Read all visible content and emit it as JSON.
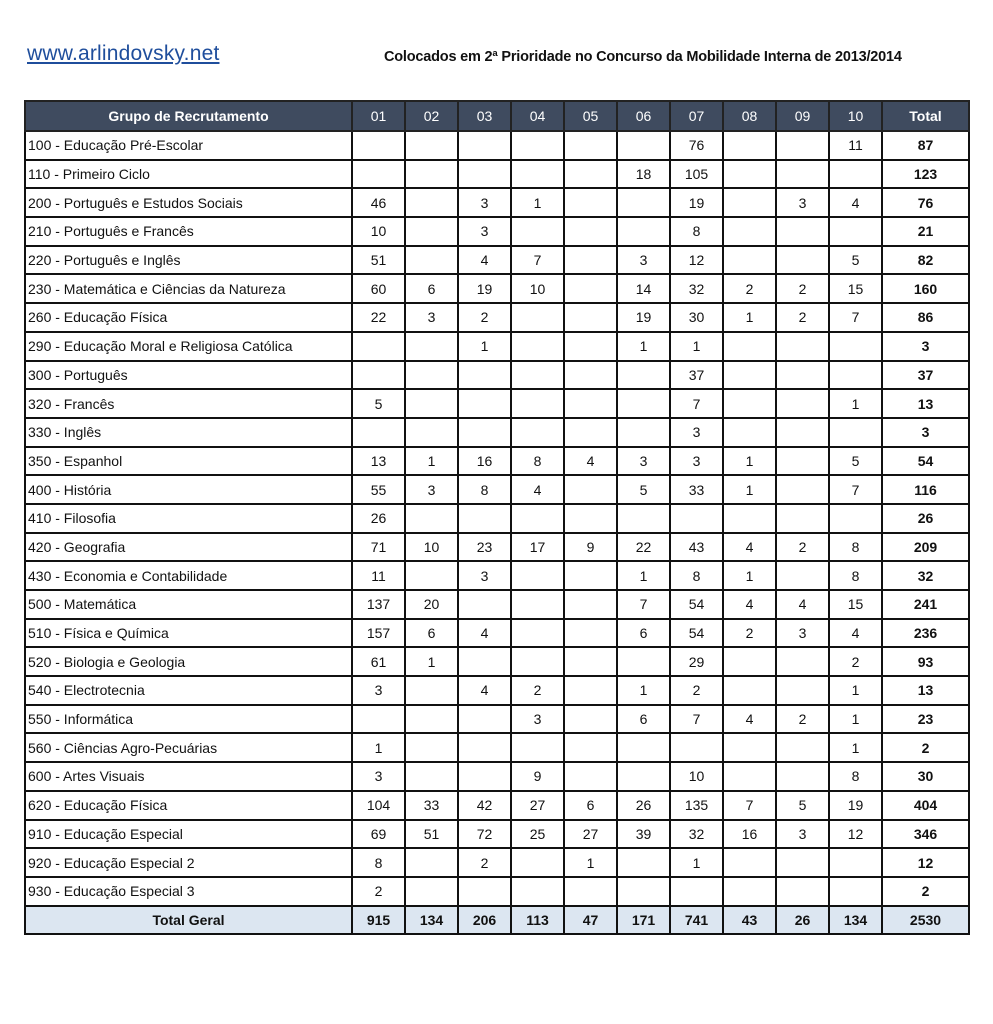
{
  "header": {
    "site": "www.arlindovsky.net",
    "title": "Colocados em 2ª Prioridade no Concurso da Mobilidade Interna de 2013/2014"
  },
  "table": {
    "columns": [
      "Grupo de Recrutamento",
      "01",
      "02",
      "03",
      "04",
      "05",
      "06",
      "07",
      "08",
      "09",
      "10",
      "Total"
    ],
    "rows": [
      {
        "group": "100 - Educação Pré-Escolar",
        "values": [
          "",
          "",
          "",
          "",
          "",
          "",
          "76",
          "",
          "",
          "11"
        ],
        "total": "87"
      },
      {
        "group": "110 - Primeiro Ciclo",
        "values": [
          "",
          "",
          "",
          "",
          "",
          "18",
          "105",
          "",
          "",
          ""
        ],
        "total": "123"
      },
      {
        "group": "200 - Português e Estudos Sociais",
        "values": [
          "46",
          "",
          "3",
          "1",
          "",
          "",
          "19",
          "",
          "3",
          "4"
        ],
        "total": "76"
      },
      {
        "group": "210 - Português e Francês",
        "values": [
          "10",
          "",
          "3",
          "",
          "",
          "",
          "8",
          "",
          "",
          ""
        ],
        "total": "21"
      },
      {
        "group": "220 - Português e Inglês",
        "values": [
          "51",
          "",
          "4",
          "7",
          "",
          "3",
          "12",
          "",
          "",
          "5"
        ],
        "total": "82"
      },
      {
        "group": "230 - Matemática e Ciências da Natureza",
        "values": [
          "60",
          "6",
          "19",
          "10",
          "",
          "14",
          "32",
          "2",
          "2",
          "15"
        ],
        "total": "160"
      },
      {
        "group": "260 - Educação Física",
        "values": [
          "22",
          "3",
          "2",
          "",
          "",
          "19",
          "30",
          "1",
          "2",
          "7"
        ],
        "total": "86"
      },
      {
        "group": "290 - Educação Moral e Religiosa Católica",
        "values": [
          "",
          "",
          "1",
          "",
          "",
          "1",
          "1",
          "",
          "",
          ""
        ],
        "total": "3"
      },
      {
        "group": "300 - Português",
        "values": [
          "",
          "",
          "",
          "",
          "",
          "",
          "37",
          "",
          "",
          ""
        ],
        "total": "37"
      },
      {
        "group": "320 - Francês",
        "values": [
          "5",
          "",
          "",
          "",
          "",
          "",
          "7",
          "",
          "",
          "1"
        ],
        "total": "13"
      },
      {
        "group": "330 - Inglês",
        "values": [
          "",
          "",
          "",
          "",
          "",
          "",
          "3",
          "",
          "",
          ""
        ],
        "total": "3"
      },
      {
        "group": "350 - Espanhol",
        "values": [
          "13",
          "1",
          "16",
          "8",
          "4",
          "3",
          "3",
          "1",
          "",
          "5"
        ],
        "total": "54"
      },
      {
        "group": "400 - História",
        "values": [
          "55",
          "3",
          "8",
          "4",
          "",
          "5",
          "33",
          "1",
          "",
          "7"
        ],
        "total": "116"
      },
      {
        "group": "410 - Filosofia",
        "values": [
          "26",
          "",
          "",
          "",
          "",
          "",
          "",
          "",
          "",
          ""
        ],
        "total": "26"
      },
      {
        "group": "420 - Geografia",
        "values": [
          "71",
          "10",
          "23",
          "17",
          "9",
          "22",
          "43",
          "4",
          "2",
          "8"
        ],
        "total": "209"
      },
      {
        "group": "430 - Economia  e Contabilidade",
        "values": [
          "11",
          "",
          "3",
          "",
          "",
          "1",
          "8",
          "1",
          "",
          "8"
        ],
        "total": "32"
      },
      {
        "group": "500 - Matemática",
        "values": [
          "137",
          "20",
          "",
          "",
          "",
          "7",
          "54",
          "4",
          "4",
          "15"
        ],
        "total": "241"
      },
      {
        "group": "510 - Física e Química",
        "values": [
          "157",
          "6",
          "4",
          "",
          "",
          "6",
          "54",
          "2",
          "3",
          "4"
        ],
        "total": "236"
      },
      {
        "group": "520 - Biologia e Geologia",
        "values": [
          "61",
          "1",
          "",
          "",
          "",
          "",
          "29",
          "",
          "",
          "2"
        ],
        "total": "93"
      },
      {
        "group": "540 - Electrotecnia",
        "values": [
          "3",
          "",
          "4",
          "2",
          "",
          "1",
          "2",
          "",
          "",
          "1"
        ],
        "total": "13"
      },
      {
        "group": "550 - Informática",
        "values": [
          "",
          "",
          "",
          "3",
          "",
          "6",
          "7",
          "4",
          "2",
          "1"
        ],
        "total": "23"
      },
      {
        "group": "560 - Ciências Agro-Pecuárias",
        "values": [
          "1",
          "",
          "",
          "",
          "",
          "",
          "",
          "",
          "",
          "1"
        ],
        "total": "2"
      },
      {
        "group": "600 - Artes Visuais",
        "values": [
          "3",
          "",
          "",
          "9",
          "",
          "",
          "10",
          "",
          "",
          "8"
        ],
        "total": "30"
      },
      {
        "group": "620 - Educação Física",
        "values": [
          "104",
          "33",
          "42",
          "27",
          "6",
          "26",
          "135",
          "7",
          "5",
          "19"
        ],
        "total": "404"
      },
      {
        "group": "910 - Educação Especial",
        "values": [
          "69",
          "51",
          "72",
          "25",
          "27",
          "39",
          "32",
          "16",
          "3",
          "12"
        ],
        "total": "346"
      },
      {
        "group": "920 - Educação Especial 2",
        "values": [
          "8",
          "",
          "2",
          "",
          "1",
          "",
          "1",
          "",
          "",
          ""
        ],
        "total": "12"
      },
      {
        "group": "930 - Educação Especial 3",
        "values": [
          "2",
          "",
          "",
          "",
          "",
          "",
          "",
          "",
          "",
          ""
        ],
        "total": "2"
      }
    ],
    "grand_total": {
      "label": "Total Geral",
      "values": [
        "915",
        "134",
        "206",
        "113",
        "47",
        "171",
        "741",
        "43",
        "26",
        "134"
      ],
      "total": "2530"
    }
  },
  "colors": {
    "header_bg": "#3f4b5f",
    "total_row_bg": "#dce6f1",
    "link": "#1f4e9c"
  }
}
